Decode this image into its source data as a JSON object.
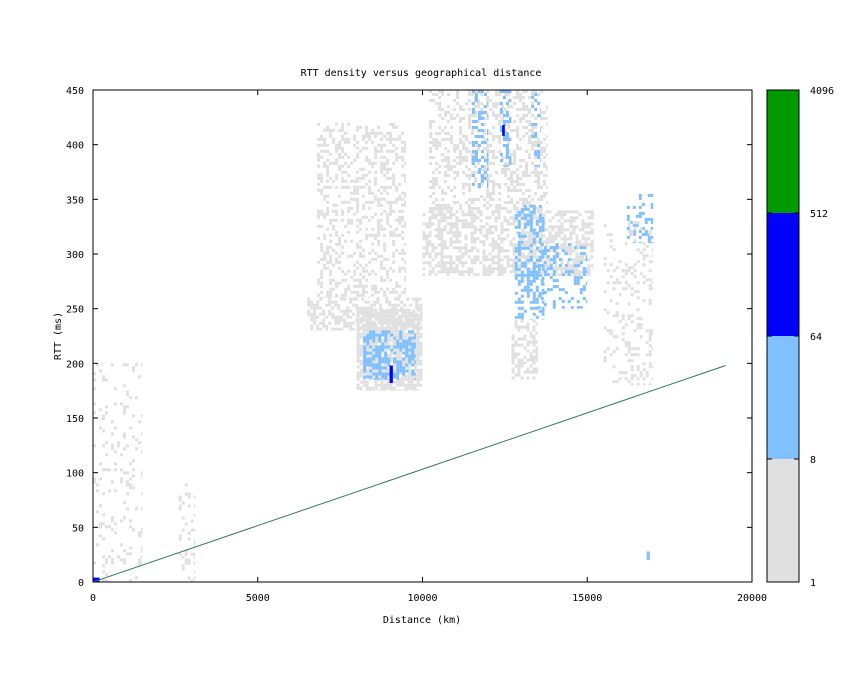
{
  "chart_data": {
    "type": "heatmap",
    "title": "RTT density versus geographical distance",
    "xlabel": "Distance (km)",
    "ylabel": "RTT (ms)",
    "xlim": [
      0,
      20000
    ],
    "ylim": [
      0,
      450
    ],
    "x_ticks": [
      "0",
      "5000",
      "10000",
      "15000",
      "20000"
    ],
    "y_ticks": [
      "0",
      "50",
      "100",
      "150",
      "200",
      "250",
      "300",
      "350",
      "400",
      "450"
    ],
    "colorbar": {
      "scale": "log",
      "tick_labels": [
        "1",
        "8",
        "64",
        "512",
        "4096"
      ],
      "bands": [
        {
          "from": 1,
          "to": 8,
          "color": "#e0e0e0"
        },
        {
          "from": 8,
          "to": 64,
          "color": "#80c0ff"
        },
        {
          "from": 64,
          "to": 512,
          "color": "#0000ff"
        },
        {
          "from": 512,
          "to": 4096,
          "color": "#009900"
        }
      ]
    },
    "reference_line": {
      "color": "#2e7d4f",
      "points": [
        [
          0,
          0
        ],
        [
          19200,
          198
        ]
      ]
    },
    "density_regions": [
      {
        "x": [
          8000,
          10000
        ],
        "y": [
          175,
          250
        ],
        "level": 1,
        "fill": 0.8
      },
      {
        "x": [
          8200,
          9800
        ],
        "y": [
          185,
          230
        ],
        "level": 2,
        "fill": 0.55
      },
      {
        "x": [
          9000,
          9100
        ],
        "y": [
          182,
          198
        ],
        "level": 3,
        "fill": 1.0
      },
      {
        "x": [
          6500,
          10000
        ],
        "y": [
          230,
          260
        ],
        "level": 1,
        "fill": 0.5
      },
      {
        "x": [
          6800,
          9500
        ],
        "y": [
          260,
          420
        ],
        "level": 1,
        "fill": 0.35
      },
      {
        "x": [
          10000,
          15200
        ],
        "y": [
          280,
          340
        ],
        "level": 1,
        "fill": 0.55
      },
      {
        "x": [
          10200,
          13800
        ],
        "y": [
          340,
          450
        ],
        "level": 1,
        "fill": 0.35
      },
      {
        "x": [
          12800,
          13700
        ],
        "y": [
          240,
          345
        ],
        "level": 2,
        "fill": 0.45
      },
      {
        "x": [
          12700,
          13500
        ],
        "y": [
          185,
          240
        ],
        "level": 1,
        "fill": 0.4
      },
      {
        "x": [
          13500,
          15000
        ],
        "y": [
          250,
          310
        ],
        "level": 2,
        "fill": 0.25
      },
      {
        "x": [
          11500,
          12000
        ],
        "y": [
          360,
          450
        ],
        "level": 2,
        "fill": 0.35
      },
      {
        "x": [
          12350,
          12700
        ],
        "y": [
          380,
          450
        ],
        "level": 2,
        "fill": 0.4
      },
      {
        "x": [
          12420,
          12500
        ],
        "y": [
          408,
          418
        ],
        "level": 3,
        "fill": 1.0
      },
      {
        "x": [
          13300,
          13600
        ],
        "y": [
          380,
          450
        ],
        "level": 2,
        "fill": 0.35
      },
      {
        "x": [
          16200,
          17000
        ],
        "y": [
          310,
          355
        ],
        "level": 2,
        "fill": 0.35
      },
      {
        "x": [
          15500,
          17000
        ],
        "y": [
          180,
          330
        ],
        "level": 1,
        "fill": 0.2
      },
      {
        "x": [
          0,
          1500
        ],
        "y": [
          0,
          200
        ],
        "level": 1,
        "fill": 0.12
      },
      {
        "x": [
          2600,
          3100
        ],
        "y": [
          0,
          90
        ],
        "level": 1,
        "fill": 0.25
      },
      {
        "x": [
          0,
          200
        ],
        "y": [
          0,
          4
        ],
        "level": 3,
        "fill": 1.0
      },
      {
        "x": [
          16800,
          16900
        ],
        "y": [
          20,
          28
        ],
        "level": 2,
        "fill": 1.0
      }
    ]
  }
}
